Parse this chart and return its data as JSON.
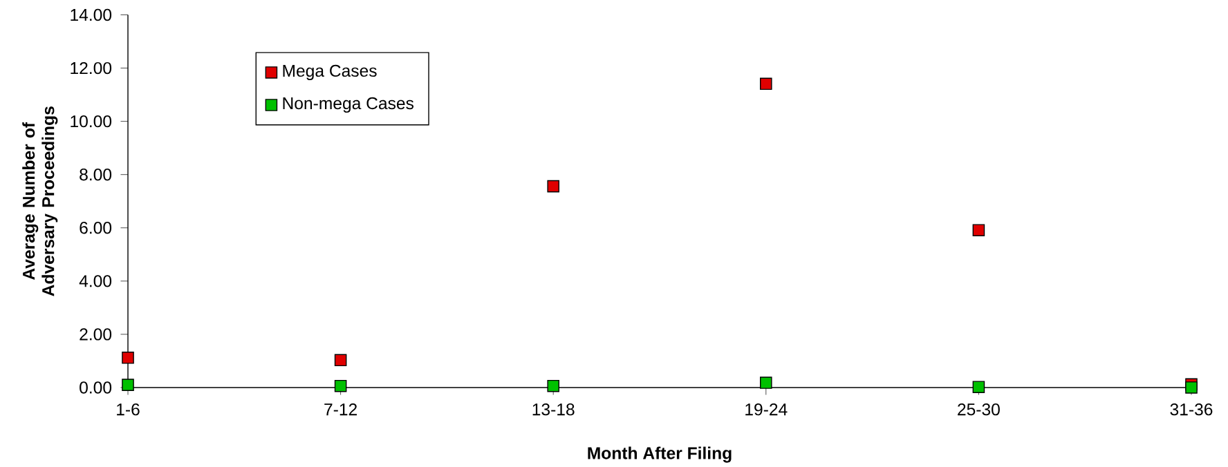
{
  "chart_data": {
    "type": "scatter",
    "xlabel": "Month After Filing",
    "ylabel": "Average Number of Adversary Proceedings",
    "categories": [
      "1-6",
      "7-12",
      "13-18",
      "19-24",
      "25-30",
      "31-36"
    ],
    "series": [
      {
        "name": "Mega Cases",
        "color": "#e00000",
        "values": [
          1.12,
          1.03,
          7.56,
          11.41,
          5.91,
          0.12
        ]
      },
      {
        "name": "Non-mega Cases",
        "color": "#00c000",
        "values": [
          0.1,
          0.06,
          0.06,
          0.18,
          0.02,
          0.0
        ]
      }
    ],
    "ylim": [
      0,
      14
    ],
    "yticks": [
      {
        "value": 0,
        "label": "0.00"
      },
      {
        "value": 2,
        "label": "2.00"
      },
      {
        "value": 4,
        "label": "4.00"
      },
      {
        "value": 6,
        "label": "6.00"
      },
      {
        "value": 8,
        "label": "8.00"
      },
      {
        "value": 10,
        "label": "10.00"
      },
      {
        "value": 12,
        "label": "12.00"
      },
      {
        "value": 14,
        "label": "14.00"
      }
    ],
    "grid": false,
    "legend": "top left",
    "marker": "square"
  }
}
